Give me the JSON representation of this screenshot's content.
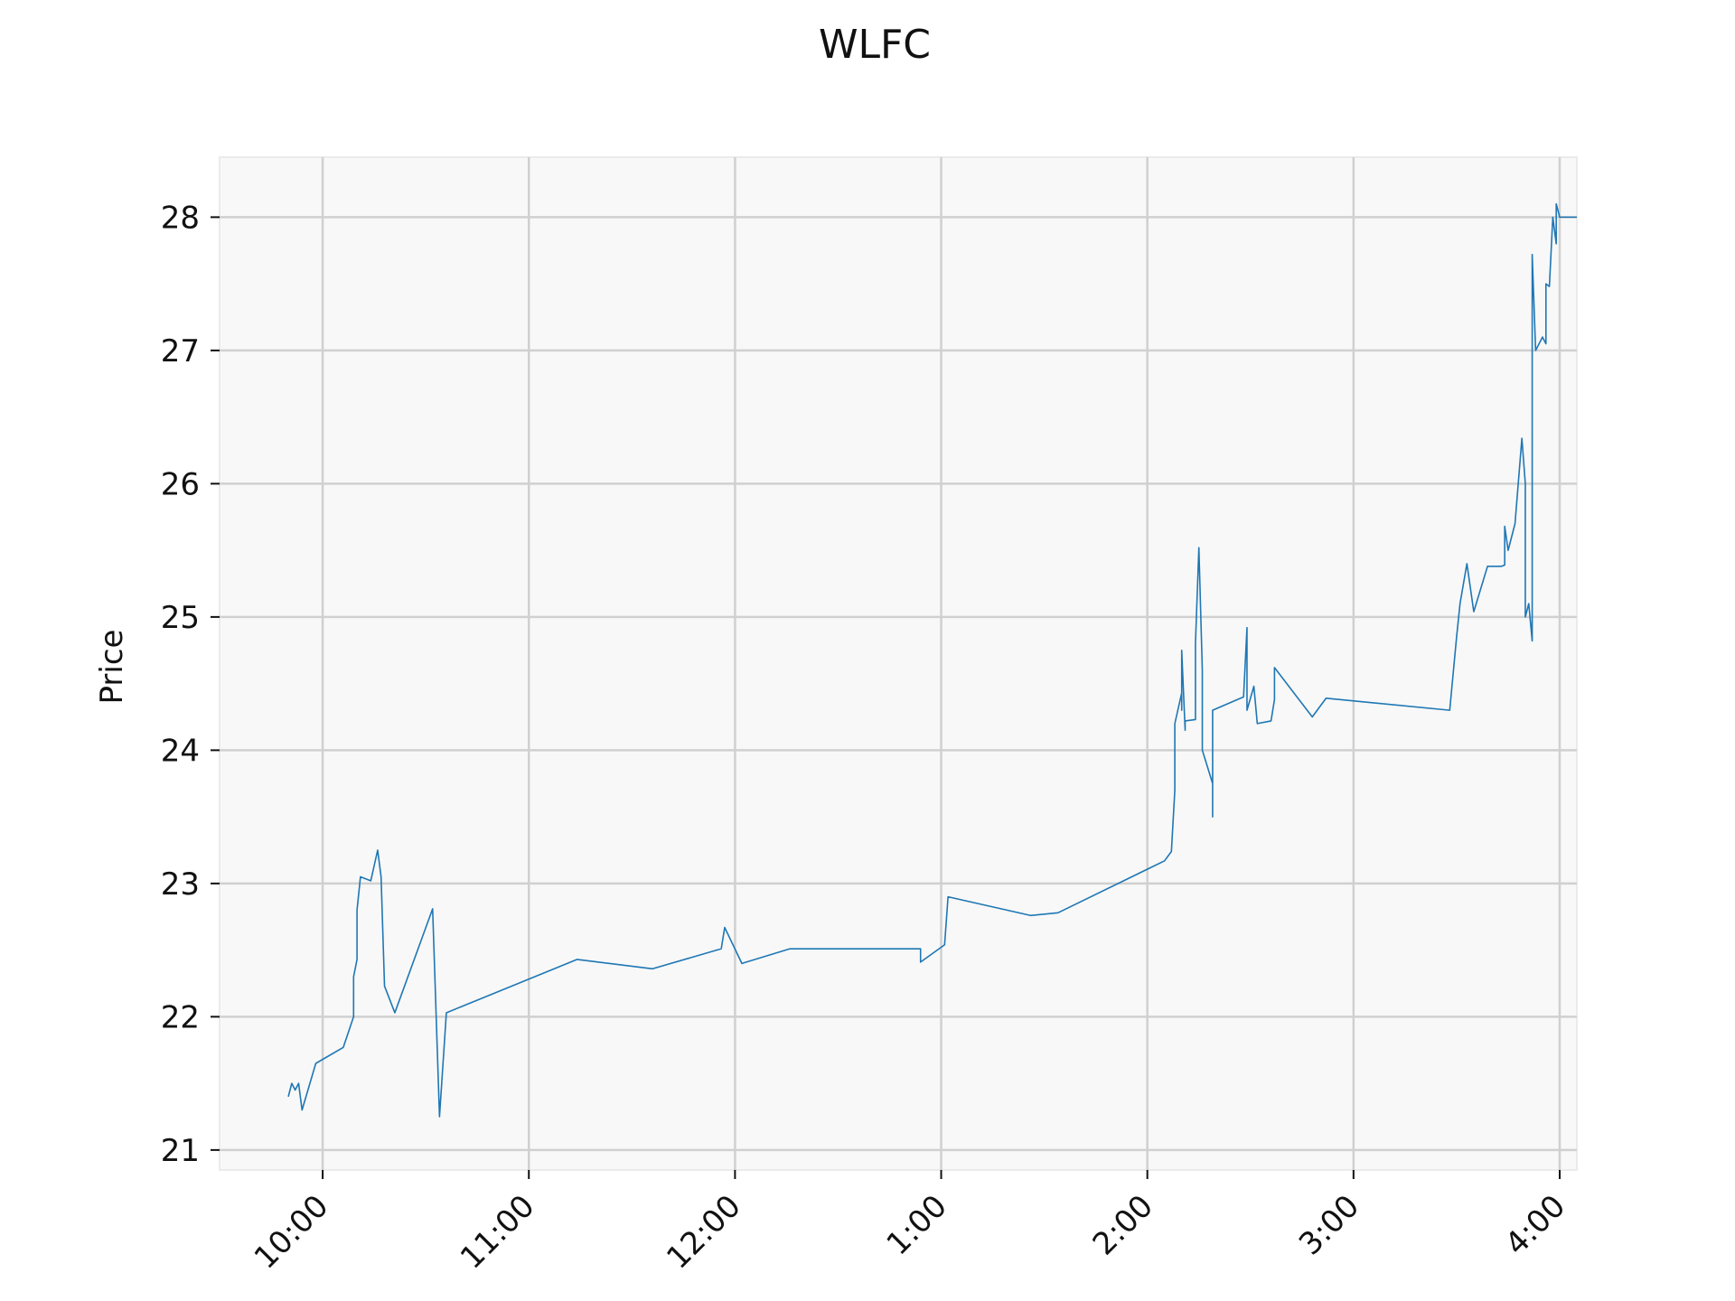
{
  "chart_data": {
    "type": "line",
    "title": "WLFC",
    "xlabel": "",
    "ylabel": "Price",
    "xlim": [
      "9:30",
      "16:05"
    ],
    "ylim": [
      20.85,
      28.45
    ],
    "grid": true,
    "legend": "none",
    "colors": {
      "line": "#1f77b4",
      "plot_bg": "#f8f8f8",
      "grid": "#d0d0d0",
      "spine": "#ebebeb"
    },
    "x_ticks": [
      {
        "t": "10:00",
        "label": "10:00"
      },
      {
        "t": "11:00",
        "label": "11:00"
      },
      {
        "t": "12:00",
        "label": "12:00"
      },
      {
        "t": "13:00",
        "label": "1:00"
      },
      {
        "t": "14:00",
        "label": "2:00"
      },
      {
        "t": "15:00",
        "label": "3:00"
      },
      {
        "t": "16:00",
        "label": "4:00"
      }
    ],
    "y_ticks": [
      {
        "v": 21,
        "label": "21"
      },
      {
        "v": 22,
        "label": "22"
      },
      {
        "v": 23,
        "label": "23"
      },
      {
        "v": 24,
        "label": "24"
      },
      {
        "v": 25,
        "label": "25"
      },
      {
        "v": 26,
        "label": "26"
      },
      {
        "v": 27,
        "label": "27"
      },
      {
        "v": 28,
        "label": "28"
      }
    ],
    "series": [
      {
        "points": [
          [
            "9:50",
            21.4
          ],
          [
            "9:51",
            21.5
          ],
          [
            "9:52",
            21.45
          ],
          [
            "9:53",
            21.5
          ],
          [
            "9:54",
            21.3
          ],
          [
            "9:58",
            21.65
          ],
          [
            "10:06",
            21.77
          ],
          [
            "10:09",
            22.0
          ],
          [
            "10:09",
            22.3
          ],
          [
            "10:10",
            22.43
          ],
          [
            "10:10",
            22.8
          ],
          [
            "10:11",
            23.05
          ],
          [
            "10:14",
            23.02
          ],
          [
            "10:16",
            23.25
          ],
          [
            "10:17",
            23.05
          ],
          [
            "10:18",
            22.23
          ],
          [
            "10:21",
            22.03
          ],
          [
            "10:32",
            22.81
          ],
          [
            "10:34",
            21.25
          ],
          [
            "10:36",
            22.03
          ],
          [
            "11:14",
            22.43
          ],
          [
            "11:36",
            22.36
          ],
          [
            "11:56",
            22.51
          ],
          [
            "11:57",
            22.67
          ],
          [
            "12:02",
            22.4
          ],
          [
            "12:16",
            22.51
          ],
          [
            "12:54",
            22.51
          ],
          [
            "12:54",
            22.41
          ],
          [
            "13:01",
            22.54
          ],
          [
            "13:02",
            22.9
          ],
          [
            "13:26",
            22.76
          ],
          [
            "13:34",
            22.78
          ],
          [
            "14:05",
            23.17
          ],
          [
            "14:07",
            23.24
          ],
          [
            "14:08",
            23.7
          ],
          [
            "14:08",
            24.2
          ],
          [
            "14:10",
            24.43
          ],
          [
            "14:10",
            24.3
          ],
          [
            "14:10",
            24.75
          ],
          [
            "14:11",
            24.15
          ],
          [
            "14:11",
            24.22
          ],
          [
            "14:14",
            24.23
          ],
          [
            "14:14",
            24.8
          ],
          [
            "14:15",
            25.52
          ],
          [
            "14:16",
            24.6
          ],
          [
            "14:16",
            24.0
          ],
          [
            "14:19",
            23.75
          ],
          [
            "14:19",
            23.5
          ],
          [
            "14:19",
            24.3
          ],
          [
            "14:28",
            24.4
          ],
          [
            "14:29",
            24.92
          ],
          [
            "14:29",
            24.3
          ],
          [
            "14:31",
            24.48
          ],
          [
            "14:32",
            24.2
          ],
          [
            "14:36",
            24.22
          ],
          [
            "14:37",
            24.38
          ],
          [
            "14:37",
            24.62
          ],
          [
            "14:48",
            24.25
          ],
          [
            "14:52",
            24.39
          ],
          [
            "15:28",
            24.3
          ],
          [
            "15:30",
            24.85
          ],
          [
            "15:31",
            25.1
          ],
          [
            "15:33",
            25.4
          ],
          [
            "15:35",
            25.04
          ],
          [
            "15:39",
            25.38
          ],
          [
            "15:43",
            25.38
          ],
          [
            "15:44",
            25.39
          ],
          [
            "15:44",
            25.68
          ],
          [
            "15:45",
            25.5
          ],
          [
            "15:47",
            25.7
          ],
          [
            "15:49",
            26.34
          ],
          [
            "15:50",
            26.0
          ],
          [
            "15:50",
            25.0
          ],
          [
            "15:51",
            25.1
          ],
          [
            "15:52",
            24.82
          ],
          [
            "15:52",
            25.1
          ],
          [
            "15:52",
            27.72
          ],
          [
            "15:53",
            27.0
          ],
          [
            "15:55",
            27.1
          ],
          [
            "15:56",
            27.05
          ],
          [
            "15:56",
            27.5
          ],
          [
            "15:57",
            27.48
          ],
          [
            "15:58",
            28.0
          ],
          [
            "15:59",
            27.8
          ],
          [
            "15:59",
            28.1
          ],
          [
            "16:00",
            28.0
          ],
          [
            "16:01",
            28.0
          ],
          [
            "16:05",
            28.0
          ]
        ]
      }
    ]
  }
}
